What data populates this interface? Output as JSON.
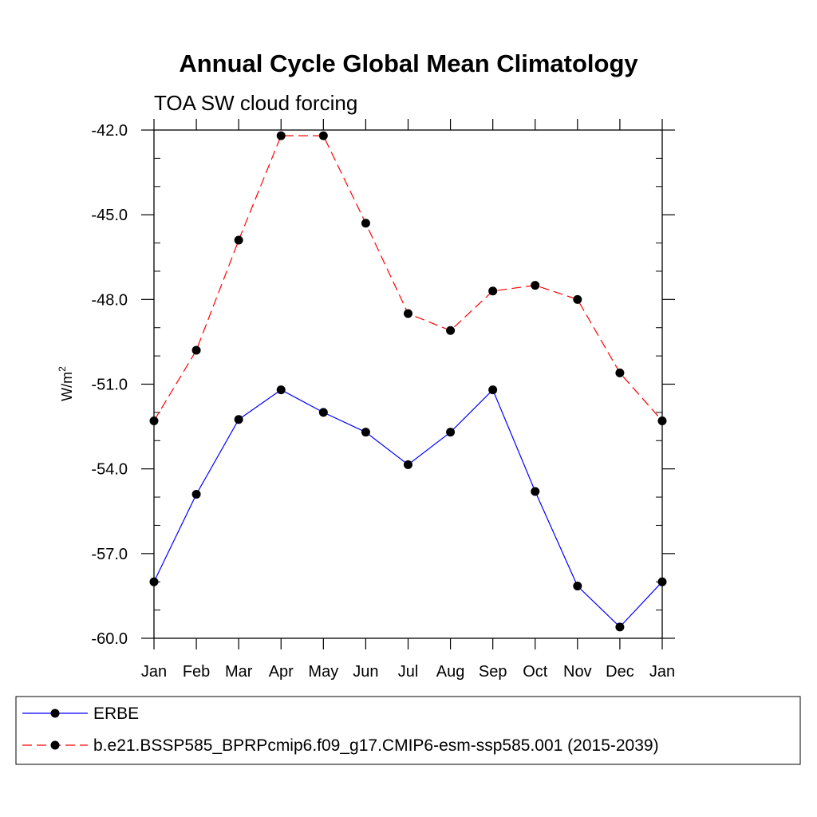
{
  "chart_data": {
    "type": "line",
    "title": "Annual Cycle Global Mean Climatology",
    "subtitle": "TOA SW cloud forcing",
    "xlabel": "",
    "ylabel": "W/m",
    "ylabel_superscript": "2",
    "categories": [
      "Jan",
      "Feb",
      "Mar",
      "Apr",
      "May",
      "Jun",
      "Jul",
      "Aug",
      "Sep",
      "Oct",
      "Nov",
      "Dec",
      "Jan"
    ],
    "ylim": [
      -60.0,
      -42.0
    ],
    "yticks": [
      -60.0,
      -57.0,
      -54.0,
      -51.0,
      -48.0,
      -45.0,
      -42.0
    ],
    "ytick_labels": [
      "-60.0",
      "-57.0",
      "-54.0",
      "-51.0",
      "-48.0",
      "-45.0",
      "-42.0"
    ],
    "yminor_step": 1.0,
    "grid": false,
    "legend_position": "bottom",
    "series": [
      {
        "name": "ERBE",
        "color": "#0000ff",
        "dash": "solid",
        "values": [
          -58.0,
          -54.9,
          -52.25,
          -51.2,
          -52.0,
          -52.7,
          -53.85,
          -52.7,
          -51.2,
          -54.8,
          -58.15,
          -59.6,
          -58.0
        ]
      },
      {
        "name": "b.e21.BSSP585_BPRPcmip6.f09_g17.CMIP6-esm-ssp585.001 (2015-2039)",
        "color": "#ff0000",
        "dash": "dashed",
        "values": [
          -52.3,
          -49.8,
          -45.9,
          -42.2,
          -42.2,
          -45.3,
          -48.5,
          -49.1,
          -47.7,
          -47.5,
          -48.0,
          -50.6,
          -52.3
        ]
      }
    ]
  }
}
